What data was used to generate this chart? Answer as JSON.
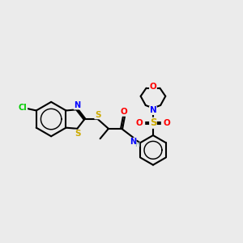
{
  "background_color": "#ebebeb",
  "atom_colors": {
    "C": "#000000",
    "N": "#0000ff",
    "O": "#ff0000",
    "S": "#ccaa00",
    "Cl": "#00cc00"
  },
  "bond_color": "#000000",
  "figsize": [
    3.0,
    3.0
  ],
  "dpi": 100,
  "lw": 1.5,
  "fs": 7.0
}
